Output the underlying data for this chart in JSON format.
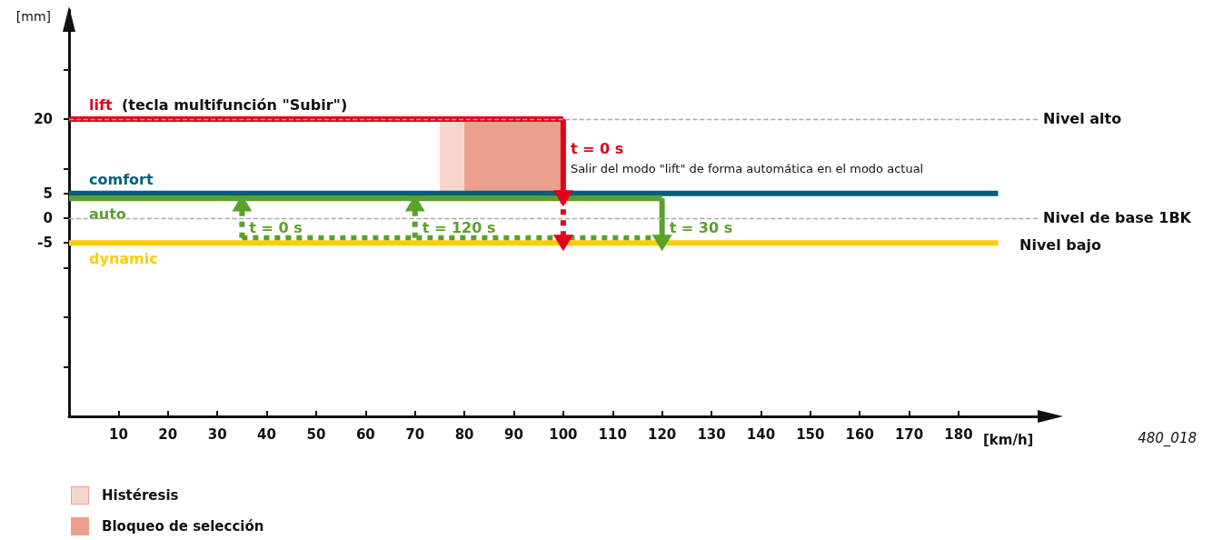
{
  "chart_data": {
    "type": "line",
    "xlabel": "[km/h]",
    "ylabel": "[mm]",
    "xlim": [
      0,
      196
    ],
    "ylim": [
      -40,
      42
    ],
    "xticks": [
      10,
      20,
      30,
      40,
      50,
      60,
      70,
      80,
      90,
      100,
      110,
      120,
      130,
      140,
      150,
      160,
      170,
      180
    ],
    "yticks": [
      {
        "value": -30,
        "label": null
      },
      {
        "value": -20,
        "label": null
      },
      {
        "value": -10,
        "label": null
      },
      -5,
      0,
      5,
      {
        "value": 10,
        "label": null
      },
      20,
      {
        "value": 30,
        "label": null
      }
    ],
    "grid": false,
    "legend": "bottom left",
    "marker": "none",
    "line_style": "solid",
    "series": [
      {
        "name": "lift",
        "color": "#e2001a",
        "x": [
          0,
          100
        ],
        "values": [
          20,
          20
        ]
      },
      {
        "color": "#e2001a",
        "x": [
          100,
          100
        ],
        "values": [
          20,
          4
        ],
        "marker": "triangle"
      },
      {
        "color": "#e2001a",
        "x": [
          100,
          100
        ],
        "values": [
          4,
          -5
        ],
        "marker": "triangle",
        "line_style": "dotted"
      },
      {
        "name": "comfort",
        "color": "#005f7f",
        "x": [
          0,
          188
        ],
        "values": [
          5,
          5
        ]
      },
      {
        "name": "auto",
        "color": "#5aa12b",
        "x": [
          0,
          120
        ],
        "values": [
          4,
          4
        ]
      },
      {
        "color": "#5aa12b",
        "x": [
          120,
          120
        ],
        "values": [
          4,
          -5
        ],
        "marker": "triangle"
      },
      {
        "color": "#5aa12b",
        "x": [
          35,
          120
        ],
        "values": [
          -4,
          -4
        ],
        "line_style": "dotted"
      },
      {
        "color": "#5aa12b",
        "x": [
          35,
          35
        ],
        "values": [
          -4,
          3
        ],
        "marker": "triangle",
        "line_style": "dotted"
      },
      {
        "color": "#5aa12b",
        "x": [
          70,
          70
        ],
        "values": [
          -4,
          3
        ],
        "marker": "triangle",
        "line_style": "dotted"
      },
      {
        "name": "dynamic",
        "color": "#ffcc00",
        "x": [
          0,
          188
        ],
        "values": [
          -5,
          -5
        ]
      }
    ],
    "ref_lines": [
      {
        "axis": "y",
        "value": 20,
        "label": "Nivel alto",
        "color": "#aaaaaa",
        "line_style": "dashed"
      },
      {
        "axis": "y",
        "value": 0,
        "label": "Nivel de base 1BK",
        "color": "#aaaaaa",
        "line_style": "dashed"
      }
    ],
    "bands": [
      {
        "axis": "x",
        "from": 75,
        "to": 80,
        "label": "Histéresis",
        "color": "#f8d5cb"
      },
      {
        "axis": "x",
        "from": 80,
        "to": 100,
        "label": "Bloqueo de selección",
        "color": "#ee9f8c"
      }
    ],
    "annotations": [
      "(tecla multifunción \"Subir\")",
      {
        "text": "t = 0 s",
        "x": 100,
        "y": 14
      },
      {
        "text": "Salir del modo \"lift\" de forma automática en el modo actual",
        "x": 100,
        "y": 10
      },
      {
        "text": "t = 0 s",
        "x": 35,
        "y": -2
      },
      {
        "text": "t = 120 s",
        "x": 70,
        "y": -2
      },
      {
        "text": "t = 30 s",
        "x": 120,
        "y": -2
      },
      "Nivel bajo",
      "480_018"
    ]
  }
}
